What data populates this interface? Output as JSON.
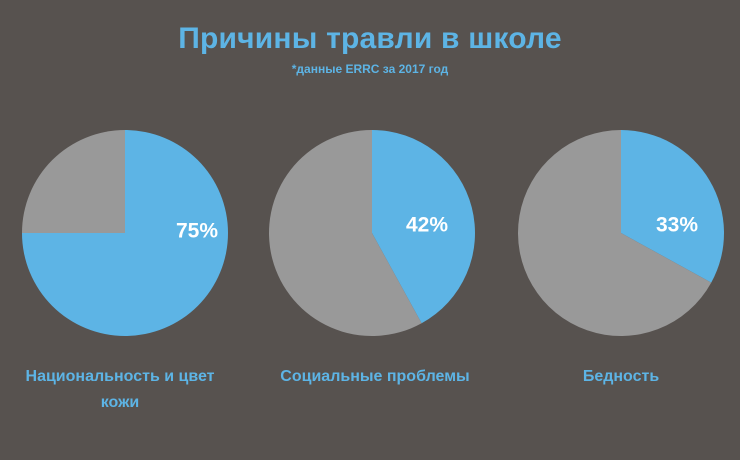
{
  "title": "Причины травли в школе",
  "subtitle": "*данные ERRC за 2017 год",
  "colors": {
    "primary": "#5db4e5",
    "secondary": "#999999",
    "background": "#57524f"
  },
  "chart_data": [
    {
      "type": "pie",
      "label": "Национальность и цвет кожи",
      "value_label": "75%",
      "slices": [
        {
          "value": 75,
          "color": "#5db4e5"
        },
        {
          "value": 25,
          "color": "#999999"
        }
      ]
    },
    {
      "type": "pie",
      "label": "Социальные проблемы",
      "value_label": "42%",
      "slices": [
        {
          "value": 42,
          "color": "#5db4e5"
        },
        {
          "value": 58,
          "color": "#999999"
        }
      ]
    },
    {
      "type": "pie",
      "label": "Бедность",
      "value_label": "33%",
      "slices": [
        {
          "value": 33,
          "color": "#5db4e5"
        },
        {
          "value": 67,
          "color": "#999999"
        }
      ]
    }
  ]
}
